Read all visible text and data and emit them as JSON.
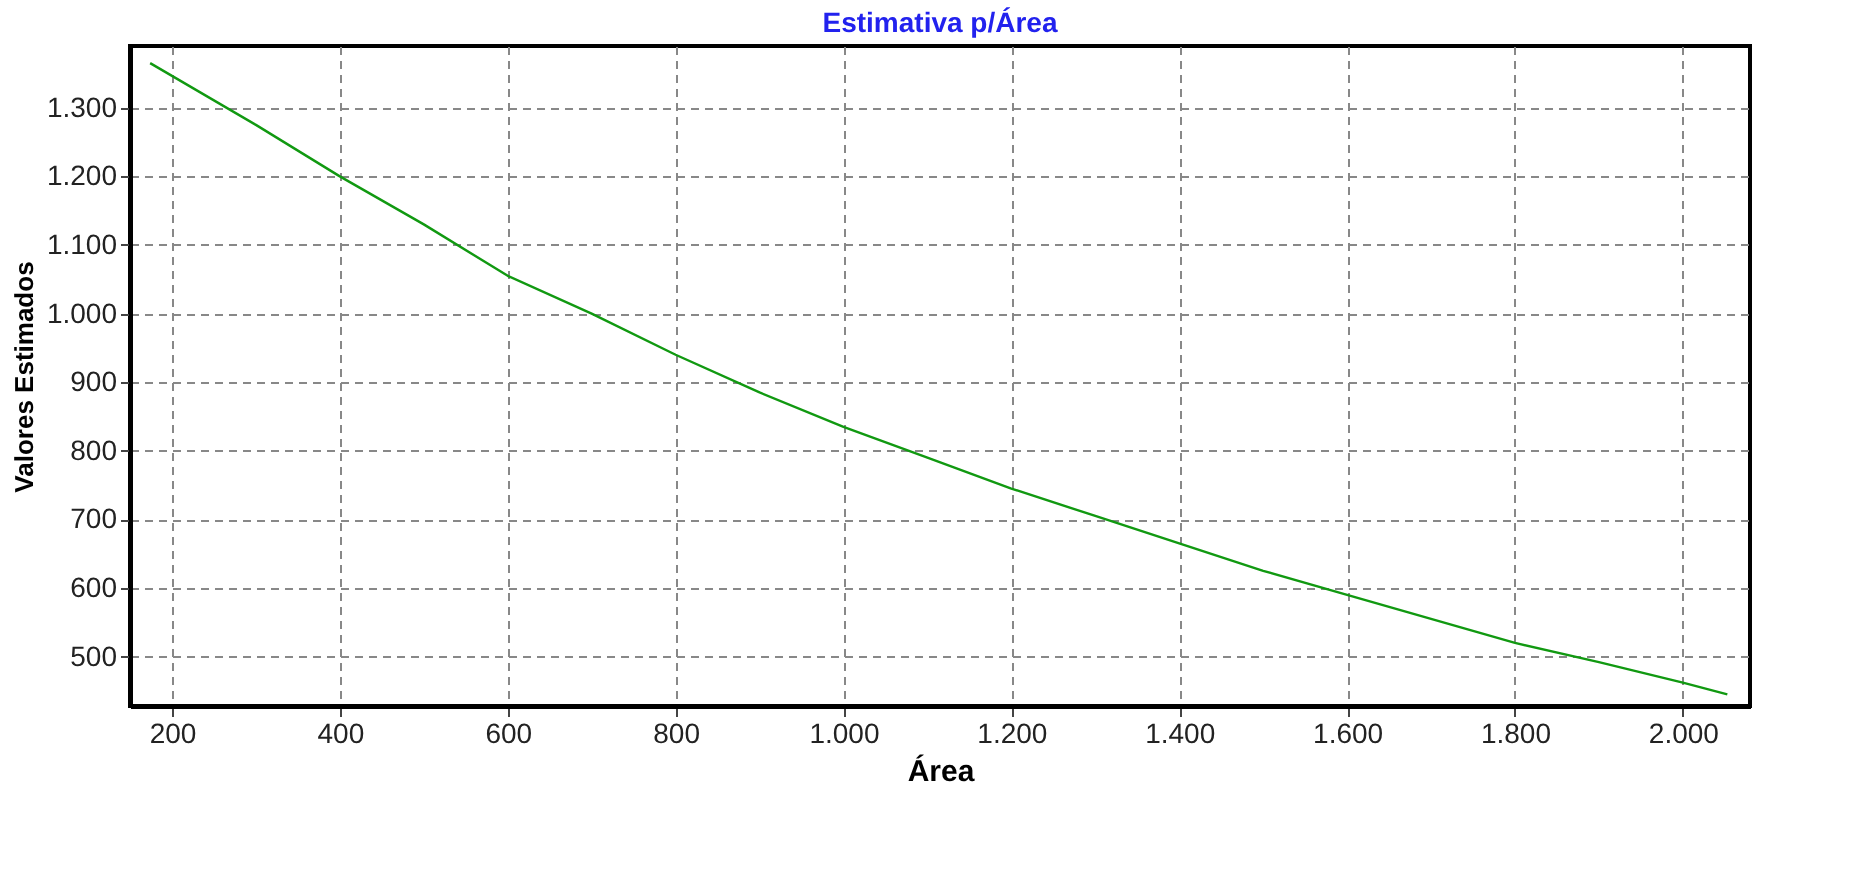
{
  "chart_data": {
    "type": "line",
    "title": "Estimativa p/Área",
    "xlabel": "Área",
    "ylabel": "Valores Estimados",
    "x": [
      174,
      300,
      400,
      500,
      600,
      700,
      800,
      900,
      1000,
      1100,
      1200,
      1300,
      1400,
      1500,
      1600,
      1700,
      1800,
      1900,
      2000,
      2053
    ],
    "series": [
      {
        "color": "#119911",
        "values": [
          1365,
          1275,
          1200,
          1130,
          1055,
          1000,
          940,
          885,
          835,
          790,
          745,
          705,
          665,
          625,
          590,
          555,
          520,
          492,
          462,
          445
        ]
      }
    ],
    "xlim": [
      150,
      2080
    ],
    "ylim": [
      428,
      1390
    ],
    "xticks": [
      200,
      400,
      600,
      800,
      {
        "value": 1000,
        "label": "1.000"
      },
      {
        "value": 1200,
        "label": "1.200"
      },
      {
        "value": 1400,
        "label": "1.400"
      },
      {
        "value": 1600,
        "label": "1.600"
      },
      {
        "value": 1800,
        "label": "1.800"
      },
      {
        "value": 2000,
        "label": "2.000"
      }
    ],
    "yticks": [
      500,
      600,
      700,
      800,
      900,
      {
        "value": 1000,
        "label": "1.000"
      },
      {
        "value": 1100,
        "label": "1.100"
      },
      {
        "value": 1200,
        "label": "1.200"
      },
      {
        "value": 1300,
        "label": "1.300"
      }
    ],
    "grid": true,
    "line_style": "solid",
    "marker": "none"
  }
}
